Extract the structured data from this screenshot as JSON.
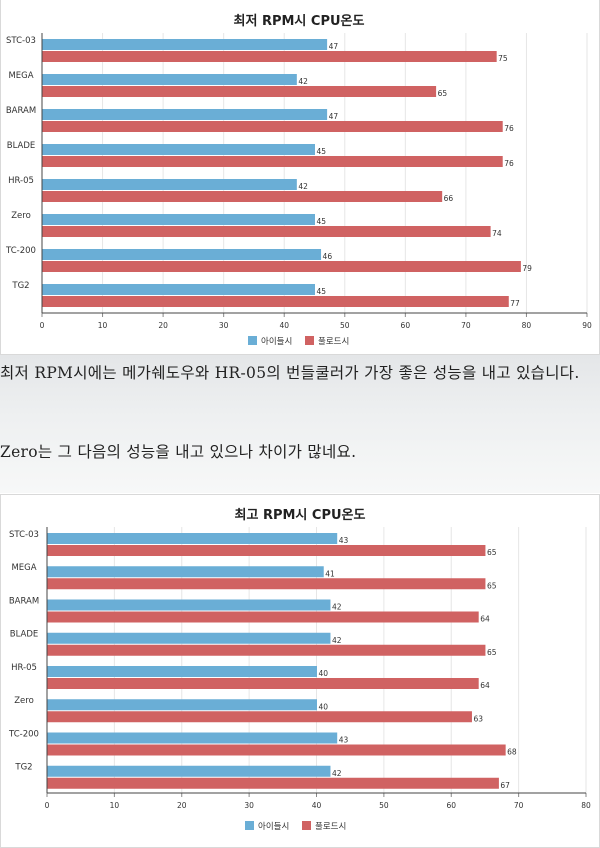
{
  "paragraphs": [
    "최저 RPM시에는 메가쉐도우와 HR-05의 번들쿨러가 가장 좋은 성능을 내고 있습니다.",
    "Zero는 그 다음의 성능을 내고 있으나 차이가 많네요."
  ],
  "colors": {
    "series1": "#6aaed6",
    "series2": "#d06262",
    "grid": "#e6e6e6",
    "axis": "#444444"
  },
  "chart_data": [
    {
      "type": "bar",
      "orientation": "horizontal",
      "title": "최저 RPM시 CPU온도",
      "categories": [
        "STC-03",
        "MEGA",
        "BARAM",
        "BLADE",
        "HR-05",
        "Zero",
        "TC-200",
        "TG2"
      ],
      "series": [
        {
          "name": "아이들시",
          "values": [
            47,
            42,
            47,
            45,
            42,
            45,
            46,
            45
          ]
        },
        {
          "name": "풀로드시",
          "values": [
            75,
            65,
            76,
            76,
            66,
            74,
            79,
            77
          ]
        }
      ],
      "xlim": [
        0,
        90
      ],
      "xticks": [
        0,
        10,
        20,
        30,
        40,
        50,
        60,
        70,
        80,
        90
      ],
      "grid": true,
      "legend": "bottom"
    },
    {
      "type": "bar",
      "orientation": "horizontal",
      "title": "최고 RPM시 CPU온도",
      "categories": [
        "STC-03",
        "MEGA",
        "BARAM",
        "BLADE",
        "HR-05",
        "Zero",
        "TC-200",
        "TG2"
      ],
      "series": [
        {
          "name": "아이들시",
          "values": [
            43,
            41,
            42,
            42,
            40,
            40,
            43,
            42
          ]
        },
        {
          "name": "풀로드시",
          "values": [
            65,
            65,
            64,
            65,
            64,
            63,
            68,
            67
          ]
        }
      ],
      "xlim": [
        0,
        80
      ],
      "xticks": [
        0,
        10,
        20,
        30,
        40,
        50,
        60,
        70,
        80
      ],
      "grid": true,
      "legend": "bottom"
    }
  ]
}
